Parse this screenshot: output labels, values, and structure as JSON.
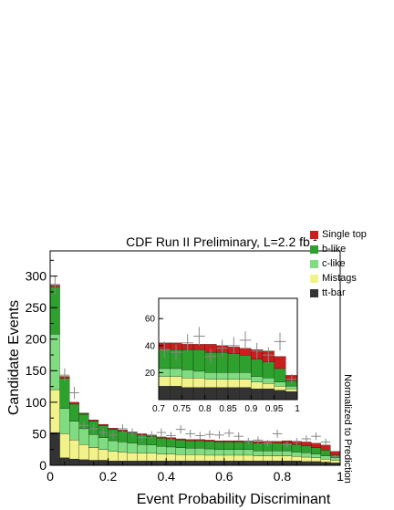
{
  "chart_data": {
    "type": "area",
    "title": "CDF Run II Preliminary, L=2.2 fb",
    "title_superscript": "-1",
    "xlabel": "Event Probability Discriminant",
    "ylabel": "Candidate Events",
    "side_label": "Normalized to Prediction",
    "xlim": [
      0,
      1
    ],
    "ylim": [
      0,
      340
    ],
    "xticks": [
      "0",
      "0.2",
      "0.4",
      "0.6",
      "0.8",
      "1"
    ],
    "xtick_values": [
      0,
      0.2,
      0.4,
      0.6,
      0.8,
      1
    ],
    "yticks": [
      "0",
      "50",
      "100",
      "150",
      "200",
      "250",
      "300"
    ],
    "ytick_values": [
      0,
      50,
      100,
      150,
      200,
      250,
      300
    ],
    "bin_width": 0.0333,
    "bins": [
      0,
      0.0333,
      0.0667,
      0.1,
      0.1333,
      0.1667,
      0.2,
      0.2333,
      0.2667,
      0.3,
      0.3333,
      0.3667,
      0.4,
      0.4333,
      0.4667,
      0.5,
      0.5333,
      0.5667,
      0.6,
      0.6333,
      0.6667,
      0.7,
      0.7333,
      0.7667,
      0.8,
      0.8333,
      0.8667,
      0.9,
      0.9333,
      0.9667
    ],
    "series": [
      {
        "name": "tt-bar",
        "color": "#333333",
        "values": [
          52,
          12,
          10,
          9,
          8,
          8,
          7,
          7,
          7,
          7,
          7,
          7,
          7,
          7,
          7,
          7,
          7,
          7,
          7,
          7,
          7,
          7,
          7,
          7,
          7,
          7,
          6,
          6,
          5,
          4
        ]
      },
      {
        "name": "Mistags",
        "color": "#f2f28a",
        "values": [
          68,
          38,
          30,
          24,
          20,
          17,
          15,
          14,
          13,
          12,
          12,
          11,
          11,
          10,
          10,
          10,
          9,
          9,
          9,
          9,
          9,
          8,
          8,
          8,
          8,
          7,
          7,
          6,
          5,
          4
        ]
      },
      {
        "name": "c-like",
        "color": "#80dc80",
        "values": [
          88,
          40,
          30,
          25,
          21,
          19,
          17,
          16,
          15,
          14,
          13,
          12,
          11,
          11,
          10,
          10,
          10,
          9,
          9,
          9,
          9,
          8,
          8,
          8,
          8,
          7,
          7,
          6,
          5,
          4
        ]
      },
      {
        "name": "b-like",
        "color": "#2ea02e",
        "values": [
          75,
          48,
          27,
          23,
          21,
          19,
          18,
          17,
          16,
          15,
          14,
          13,
          13,
          12,
          12,
          12,
          12,
          12,
          12,
          12,
          12,
          12,
          12,
          12,
          12,
          12,
          11,
          10,
          9,
          4
        ]
      },
      {
        "name": "Single top",
        "color": "#c81e1e",
        "values": [
          4,
          3,
          3,
          2,
          2,
          2,
          2,
          2,
          2,
          2,
          2,
          2,
          2,
          2,
          2,
          2,
          2,
          2,
          2,
          2,
          2,
          3,
          3,
          3,
          4,
          5,
          6,
          7,
          8,
          6
        ]
      }
    ],
    "data_points": {
      "name": "data",
      "x": [
        0.0167,
        0.05,
        0.0833,
        0.1167,
        0.15,
        0.1833,
        0.2167,
        0.25,
        0.2833,
        0.3167,
        0.35,
        0.3833,
        0.4167,
        0.45,
        0.4833,
        0.5167,
        0.55,
        0.5833,
        0.6167,
        0.65,
        0.6833,
        0.7167,
        0.75,
        0.7833,
        0.8167,
        0.85,
        0.8833,
        0.9167,
        0.95,
        0.9833
      ],
      "y": [
        286,
        143,
        115,
        63,
        58,
        52,
        48,
        58,
        52,
        44,
        48,
        52,
        47,
        57,
        50,
        47,
        49,
        48,
        51,
        46,
        38,
        40,
        35,
        50,
        33,
        38,
        42,
        46,
        37,
        13
      ]
    },
    "legend": {
      "position": "top-right",
      "order": [
        "Single top",
        "b-like",
        "c-like",
        "Mistags",
        "tt-bar"
      ]
    },
    "inset": {
      "xlim": [
        0.7,
        1
      ],
      "ylim": [
        0,
        75
      ],
      "xticks": [
        "0.7",
        "0.75",
        "0.8",
        "0.85",
        "0.9",
        "0.95",
        "1"
      ],
      "xtick_values": [
        0.7,
        0.75,
        0.8,
        0.85,
        0.9,
        0.95,
        1
      ],
      "yticks": [
        "20",
        "40",
        "60"
      ],
      "ytick_values": [
        20,
        40,
        60
      ],
      "bin_width": 0.025,
      "bins": [
        0.7,
        0.725,
        0.75,
        0.775,
        0.8,
        0.825,
        0.85,
        0.875,
        0.9,
        0.925,
        0.95,
        0.975
      ],
      "series": [
        {
          "name": "tt-bar",
          "color": "#333333",
          "values": [
            10,
            10,
            9,
            9,
            9,
            9,
            9,
            9,
            8,
            8,
            7,
            6
          ]
        },
        {
          "name": "Mistags",
          "color": "#f2f28a",
          "values": [
            7,
            7,
            7,
            7,
            6,
            6,
            6,
            6,
            5,
            4,
            3,
            2
          ]
        },
        {
          "name": "c-like",
          "color": "#80dc80",
          "values": [
            6,
            6,
            6,
            5,
            5,
            5,
            5,
            5,
            4,
            4,
            3,
            2
          ]
        },
        {
          "name": "b-like",
          "color": "#2ea02e",
          "values": [
            14,
            14,
            15,
            16,
            15,
            15,
            14,
            13,
            13,
            12,
            10,
            4
          ]
        },
        {
          "name": "Single top",
          "color": "#c81e1e",
          "values": [
            5,
            5,
            4,
            4,
            6,
            5,
            5,
            5,
            7,
            8,
            9,
            4
          ]
        }
      ],
      "data_points": {
        "x": [
          0.7125,
          0.7375,
          0.7625,
          0.7875,
          0.8125,
          0.8375,
          0.8625,
          0.8875,
          0.9125,
          0.9375,
          0.9625,
          0.9875
        ],
        "y": [
          37,
          35,
          42,
          47,
          32,
          38,
          40,
          44,
          36,
          33,
          43,
          15
        ]
      }
    }
  }
}
